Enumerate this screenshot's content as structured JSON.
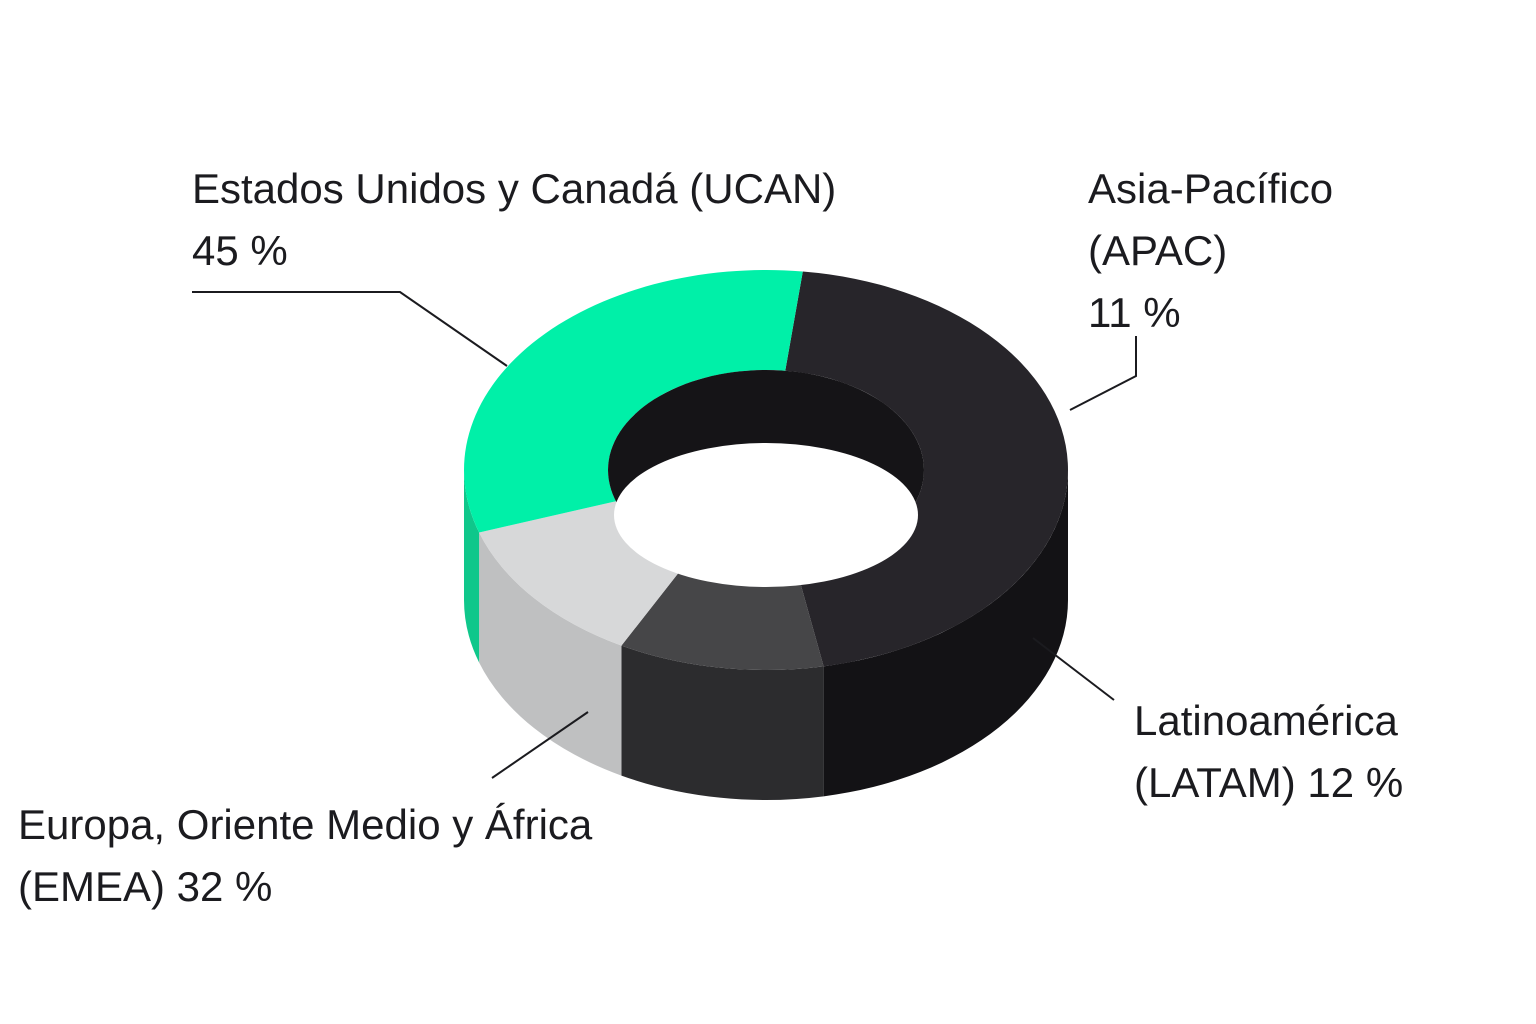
{
  "chart_data": {
    "type": "pie",
    "style": "3d-donut",
    "title": "",
    "slices": [
      {
        "name": "Estados Unidos y Canadá (UCAN)",
        "value": 45,
        "value_label": "45 %",
        "color": "#27252a",
        "side_color": "#131215"
      },
      {
        "name": "Asia-Pacífico (APAC)",
        "value": 11,
        "value_label": "11 %",
        "color": "#464648",
        "side_color": "#2c2c2e"
      },
      {
        "name": "Latinoamérica (LATAM)",
        "value": 12,
        "value_label": "12 %",
        "color": "#d7d8d9",
        "side_color": "#bfc0c1"
      },
      {
        "name": "Europa, Oriente Medio y África (EMEA)",
        "value": 32,
        "value_label": "32 %",
        "color": "#00f0a8",
        "side_color": "#0fc78b"
      }
    ],
    "inner_hole_color": "#ffffff",
    "hole_wall_color": "#151417"
  },
  "labels": {
    "ucan": {
      "line1": "Estados Unidos y Canadá (UCAN)",
      "line2": "45 %"
    },
    "apac": {
      "line1": "Asia-Pacífico",
      "line2": "(APAC)",
      "line3": "11 %"
    },
    "latam": {
      "line1": "Latinoamérica",
      "line2": "(LATAM) 12 %"
    },
    "emea": {
      "line1": "Europa, Oriente Medio y África",
      "line2": "(EMEA) 32 %"
    }
  },
  "leader_color": "#1b1b1f"
}
